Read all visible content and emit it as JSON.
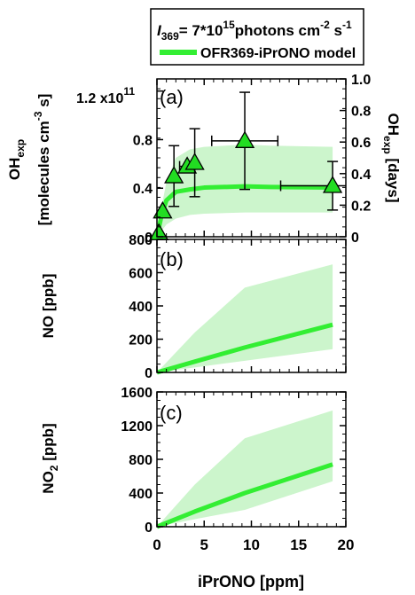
{
  "legend": {
    "intensity": {
      "base": "I",
      "sub": "369",
      "eq": "=  7*10",
      "exp1": "15",
      "mid": "photons cm",
      "exp2": "-2",
      "mid2": " s",
      "exp3": "-1"
    },
    "model_label": "OFR369-iPrONO model"
  },
  "colors": {
    "model": "#33ee33",
    "band": "#ccf5cc",
    "marker": "#22dd22",
    "axis": "#000000"
  },
  "chart_data": [
    {
      "type": "line",
      "panel_label": "(a)",
      "ylabel_left": {
        "main": "OH",
        "sub": "exp",
        "line2": "[molecules cm",
        "line2_exp": "-3",
        "line2_end": " s]"
      },
      "ylabel_right": {
        "main": "OH",
        "sub": "exp",
        "end": " [days]"
      },
      "xlim": [
        0,
        20
      ],
      "ylim": [
        0,
        130000000000.0
      ],
      "yticks_left": [
        {
          "v": 0,
          "label": "0"
        },
        {
          "v": 40000000000.0,
          "label": "0.4"
        },
        {
          "v": 80000000000.0,
          "label": "0.8"
        }
      ],
      "yticks_left_top": {
        "v": 120000000000.0,
        "label": "1.2 x10",
        "exp": "11"
      },
      "right_ylim": [
        0,
        1.0
      ],
      "yticks_right": [
        "0",
        "0.2",
        "0.4",
        "0.6",
        "0.8",
        "1.0"
      ],
      "model": {
        "x": [
          0,
          0.5,
          1,
          2,
          3.5,
          5,
          9.3,
          12,
          18.6
        ],
        "y": [
          0,
          18000000000.0,
          30000000000.0,
          37000000000.0,
          39000000000.0,
          40500000000.0,
          41500000000.0,
          41000000000.0,
          40500000000.0
        ]
      },
      "band": {
        "x": [
          0,
          0.5,
          1,
          2,
          3.5,
          5,
          9.3,
          12,
          18.6
        ],
        "lower": [
          0,
          5000000000.0,
          10000000000.0,
          15000000000.0,
          18000000000.0,
          19000000000.0,
          20000000000.0,
          20000000000.0,
          20000000000.0
        ],
        "upper": [
          0,
          25000000000.0,
          45000000000.0,
          65000000000.0,
          72000000000.0,
          74000000000.0,
          76000000000.0,
          75000000000.0,
          74000000000.0
        ]
      },
      "points": [
        {
          "x": 0.2,
          "y": 3000000000.0,
          "xerr": 0,
          "yerr": 0
        },
        {
          "x": 0.6,
          "y": 21000000000.0,
          "xerr": 0,
          "yerr": 0
        },
        {
          "x": 1.8,
          "y": 50000000000.0,
          "xerr": 0,
          "yerr": 25000000000.0
        },
        {
          "x": 3.2,
          "y": 58000000000.0,
          "xerr": 0.8,
          "yerr": 0
        },
        {
          "x": 4.0,
          "y": 61000000000.0,
          "xerr": 0,
          "yerr": 28000000000.0
        },
        {
          "x": 9.3,
          "y": 79000000000.0,
          "xerr": 3.5,
          "yerr": 40000000000.0
        },
        {
          "x": 18.6,
          "y": 42000000000.0,
          "xerr": 5.5,
          "yerr": 20000000000.0
        }
      ]
    },
    {
      "type": "line",
      "panel_label": "(b)",
      "ylabel": {
        "main": "NO [ppb]"
      },
      "xlim": [
        0,
        20
      ],
      "ylim": [
        0,
        800
      ],
      "yticks": [
        0,
        200,
        400,
        600,
        800
      ],
      "model": {
        "x": [
          0,
          4,
          9.3,
          18.6
        ],
        "y": [
          0,
          65,
          150,
          287
        ]
      },
      "band": {
        "x": [
          0,
          4,
          9.3,
          18.6
        ],
        "lower": [
          0,
          30,
          70,
          140
        ],
        "upper": [
          0,
          240,
          510,
          650
        ]
      }
    },
    {
      "type": "line",
      "panel_label": "(c)",
      "ylabel": {
        "main": "NO",
        "sub": "2",
        "end": " [ppb]"
      },
      "xlim": [
        0,
        20
      ],
      "ylim": [
        0,
        1600
      ],
      "yticks": [
        0,
        400,
        800,
        1200,
        1600
      ],
      "xticks": [
        0,
        5,
        10,
        15,
        20
      ],
      "xlabel": "iPrONO [ppm]",
      "model": {
        "x": [
          0,
          4,
          9.3,
          18.6
        ],
        "y": [
          0,
          180,
          400,
          740
        ]
      },
      "band": {
        "x": [
          0,
          4,
          9.3,
          18.6
        ],
        "lower": [
          0,
          90,
          200,
          540
        ],
        "upper": [
          0,
          500,
          1050,
          1380
        ]
      }
    }
  ]
}
